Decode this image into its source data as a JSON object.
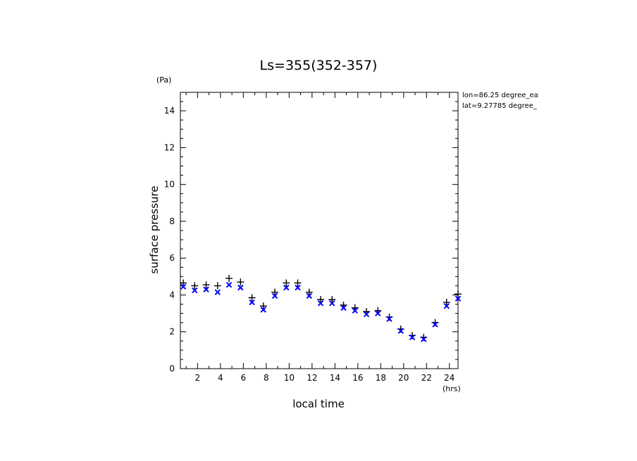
{
  "chart_data": {
    "type": "scatter",
    "title": "Ls=355(352-357)",
    "xlabel": "local time",
    "ylabel": "surface pressure",
    "x_unit": "(hrs)",
    "y_unit": "(Pa)",
    "xlim": [
      0.5,
      24.75
    ],
    "ylim": [
      0,
      15
    ],
    "x_ticks": [
      2,
      4,
      6,
      8,
      10,
      12,
      14,
      16,
      18,
      20,
      22,
      24
    ],
    "y_ticks": [
      0,
      2,
      4,
      6,
      8,
      10,
      12,
      14
    ],
    "annotations": [
      "lon=86.25 degree_ea",
      "lat=9.27785 degree_"
    ],
    "series": [
      {
        "marker": "plus",
        "color": "#000000",
        "x": [
          0.75,
          1.75,
          2.75,
          3.75,
          4.75,
          5.75,
          6.75,
          7.75,
          8.75,
          9.75,
          10.75,
          11.75,
          12.75,
          13.75,
          14.75,
          15.75,
          16.75,
          17.75,
          18.75,
          19.75,
          20.75,
          21.75,
          22.75,
          23.75,
          24.75
        ],
        "y": [
          4.65,
          4.5,
          4.55,
          4.5,
          4.9,
          4.7,
          3.85,
          3.4,
          4.15,
          4.65,
          4.65,
          4.15,
          3.75,
          3.75,
          3.45,
          3.3,
          3.1,
          3.15,
          2.8,
          2.15,
          1.8,
          1.7,
          2.5,
          3.6,
          4.05
        ]
      },
      {
        "marker": "x",
        "color": "#0000ff",
        "x": [
          0.75,
          1.75,
          2.75,
          3.75,
          4.75,
          5.75,
          6.75,
          7.75,
          8.75,
          9.75,
          10.75,
          11.75,
          12.75,
          13.75,
          14.75,
          15.75,
          16.75,
          17.75,
          18.75,
          19.75,
          20.75,
          21.75,
          22.75,
          23.75,
          24.75
        ],
        "y": [
          4.45,
          4.25,
          4.3,
          4.15,
          4.55,
          4.4,
          3.6,
          3.2,
          3.95,
          4.4,
          4.4,
          3.95,
          3.55,
          3.55,
          3.3,
          3.15,
          2.95,
          3.0,
          2.7,
          2.05,
          1.7,
          1.6,
          2.4,
          3.4,
          3.8
        ]
      }
    ]
  }
}
